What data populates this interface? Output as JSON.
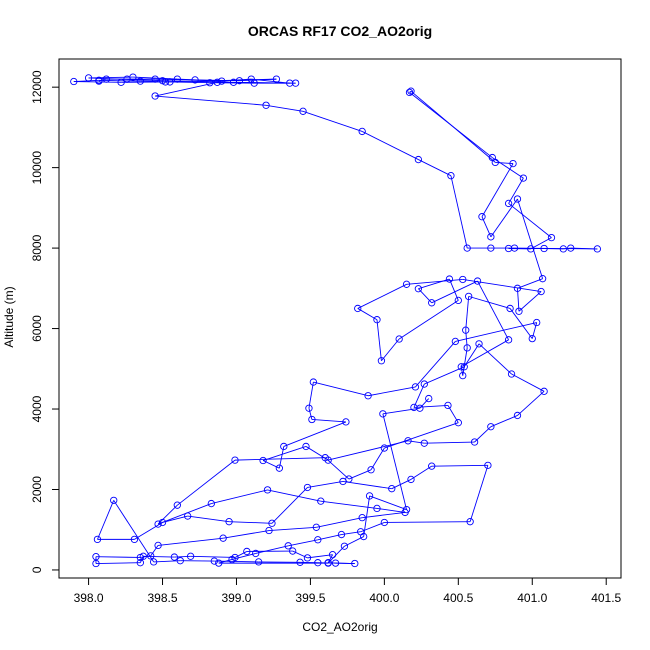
{
  "chart_data": {
    "type": "line",
    "title": "ORCAS RF17 CO2_AO2orig",
    "xlabel": "CO2_AO2orig",
    "ylabel": "Altitude (m)",
    "xlim": [
      397.8,
      401.6
    ],
    "ylim": [
      -200,
      12700
    ],
    "xticks": [
      398.0,
      398.5,
      399.0,
      399.5,
      400.0,
      400.5,
      401.0,
      401.5
    ],
    "xtick_labels": [
      "398.0",
      "398.5",
      "399.0",
      "399.5",
      "400.0",
      "400.5",
      "401.0",
      "401.5"
    ],
    "yticks": [
      0,
      2000,
      4000,
      6000,
      8000,
      10000,
      12000
    ],
    "ytick_labels": [
      "0",
      "2000",
      "4000",
      "6000",
      "8000",
      "10000",
      "12000"
    ],
    "grid": false,
    "legend": "none",
    "series": [
      {
        "color": "#0000ff",
        "marker": "open-circle",
        "points": [
          [
            398.07,
            12150
          ],
          [
            398.12,
            12200
          ],
          [
            398.26,
            12200
          ],
          [
            398.45,
            12200
          ],
          [
            398.72,
            12180
          ],
          [
            399.02,
            12160
          ],
          [
            399.27,
            12200
          ],
          [
            398.52,
            12130
          ],
          [
            398.22,
            12120
          ],
          [
            397.9,
            12140
          ],
          [
            398.07,
            12170
          ],
          [
            398.35,
            12150
          ],
          [
            398.55,
            12130
          ],
          [
            398.82,
            12110
          ],
          [
            399.12,
            12100
          ],
          [
            399.4,
            12100
          ],
          [
            398.98,
            12120
          ],
          [
            398.5,
            12160
          ],
          [
            398.0,
            12230
          ],
          [
            398.3,
            12250
          ],
          [
            398.6,
            12200
          ],
          [
            398.9,
            12150
          ],
          [
            399.1,
            12200
          ],
          [
            399.36,
            12100
          ],
          [
            398.87,
            12120
          ],
          [
            398.45,
            11780
          ],
          [
            399.2,
            11550
          ],
          [
            399.45,
            11400
          ],
          [
            399.85,
            10900
          ],
          [
            400.23,
            10200
          ],
          [
            400.45,
            9800
          ],
          [
            400.56,
            8000
          ],
          [
            400.72,
            8000
          ],
          [
            400.88,
            8000
          ],
          [
            401.44,
            7980
          ],
          [
            401.26,
            8000
          ],
          [
            401.21,
            7980
          ],
          [
            401.08,
            7990
          ],
          [
            400.84,
            7990
          ],
          [
            400.99,
            7980
          ],
          [
            401.13,
            8260
          ],
          [
            400.84,
            9110
          ],
          [
            400.94,
            9740
          ],
          [
            400.73,
            10250
          ],
          [
            400.17,
            11870
          ],
          [
            400.18,
            11900
          ],
          [
            400.75,
            10130
          ],
          [
            400.87,
            10100
          ],
          [
            400.66,
            8780
          ],
          [
            400.72,
            8280
          ],
          [
            400.9,
            9220
          ],
          [
            401.07,
            7240
          ],
          [
            400.9,
            7000
          ],
          [
            400.91,
            6430
          ],
          [
            401.06,
            6920
          ],
          [
            400.53,
            7220
          ],
          [
            400.15,
            7100
          ],
          [
            399.82,
            6500
          ],
          [
            399.95,
            6220
          ],
          [
            399.98,
            5200
          ],
          [
            400.1,
            5740
          ],
          [
            400.5,
            6700
          ],
          [
            400.44,
            7230
          ],
          [
            400.23,
            6990
          ],
          [
            400.32,
            6640
          ],
          [
            400.63,
            7180
          ],
          [
            400.84,
            5720
          ],
          [
            400.52,
            5050
          ],
          [
            400.53,
            4830
          ],
          [
            400.56,
            5520
          ],
          [
            400.55,
            5960
          ],
          [
            400.57,
            6800
          ],
          [
            400.85,
            6500
          ],
          [
            401.0,
            5750
          ],
          [
            401.03,
            6150
          ],
          [
            400.48,
            5680
          ],
          [
            400.21,
            4550
          ],
          [
            399.89,
            4330
          ],
          [
            399.52,
            4670
          ],
          [
            399.49,
            4020
          ],
          [
            399.51,
            3740
          ],
          [
            399.74,
            3680
          ],
          [
            399.32,
            3070
          ],
          [
            399.29,
            2530
          ],
          [
            399.18,
            2720
          ],
          [
            399.47,
            3070
          ],
          [
            399.62,
            2730
          ],
          [
            400.16,
            3210
          ],
          [
            400.27,
            3150
          ],
          [
            400.61,
            3180
          ],
          [
            400.72,
            3560
          ],
          [
            400.9,
            3840
          ],
          [
            401.08,
            4440
          ],
          [
            400.86,
            4870
          ],
          [
            400.64,
            5620
          ],
          [
            400.54,
            5050
          ],
          [
            400.27,
            4620
          ],
          [
            400.2,
            4040
          ],
          [
            400.43,
            4090
          ],
          [
            400.5,
            3660
          ],
          [
            400.0,
            3030
          ],
          [
            399.91,
            2490
          ],
          [
            399.76,
            2260
          ],
          [
            399.6,
            2790
          ],
          [
            398.99,
            2730
          ],
          [
            398.6,
            1610
          ],
          [
            398.47,
            1140
          ],
          [
            398.83,
            1650
          ],
          [
            399.21,
            1990
          ],
          [
            399.57,
            1710
          ],
          [
            399.95,
            1530
          ],
          [
            400.14,
            1430
          ],
          [
            399.85,
            1300
          ],
          [
            399.54,
            1060
          ],
          [
            399.22,
            980
          ],
          [
            398.91,
            790
          ],
          [
            398.47,
            610
          ],
          [
            398.42,
            350
          ],
          [
            398.35,
            310
          ],
          [
            398.05,
            330
          ],
          [
            398.05,
            160
          ],
          [
            398.35,
            180
          ],
          [
            398.37,
            340
          ],
          [
            398.58,
            320
          ],
          [
            398.69,
            340
          ],
          [
            398.99,
            310
          ],
          [
            399.07,
            460
          ],
          [
            399.38,
            470
          ],
          [
            399.48,
            300
          ],
          [
            399.65,
            380
          ],
          [
            399.62,
            180
          ],
          [
            399.67,
            170
          ],
          [
            399.8,
            160
          ],
          [
            399.55,
            180
          ],
          [
            399.43,
            190
          ],
          [
            399.15,
            200
          ],
          [
            398.85,
            220
          ],
          [
            398.62,
            230
          ],
          [
            398.44,
            200
          ],
          [
            398.17,
            1730
          ],
          [
            398.06,
            760
          ],
          [
            398.31,
            760
          ],
          [
            398.5,
            1180
          ],
          [
            398.67,
            1340
          ],
          [
            398.95,
            1200
          ],
          [
            399.24,
            1160
          ],
          [
            399.48,
            2050
          ],
          [
            399.72,
            2200
          ],
          [
            400.05,
            2020
          ],
          [
            400.18,
            2250
          ],
          [
            400.32,
            2580
          ],
          [
            400.7,
            2600
          ],
          [
            400.58,
            1200
          ],
          [
            400.0,
            1180
          ],
          [
            399.84,
            950
          ],
          [
            399.71,
            880
          ],
          [
            399.55,
            750
          ],
          [
            399.35,
            600
          ],
          [
            399.13,
            410
          ],
          [
            398.97,
            260
          ],
          [
            398.88,
            170
          ],
          [
            399.62,
            170
          ],
          [
            399.73,
            590
          ],
          [
            399.86,
            830
          ],
          [
            399.9,
            1840
          ],
          [
            400.15,
            1500
          ],
          [
            399.99,
            3880
          ],
          [
            400.24,
            4020
          ],
          [
            400.3,
            4260
          ]
        ]
      }
    ]
  }
}
